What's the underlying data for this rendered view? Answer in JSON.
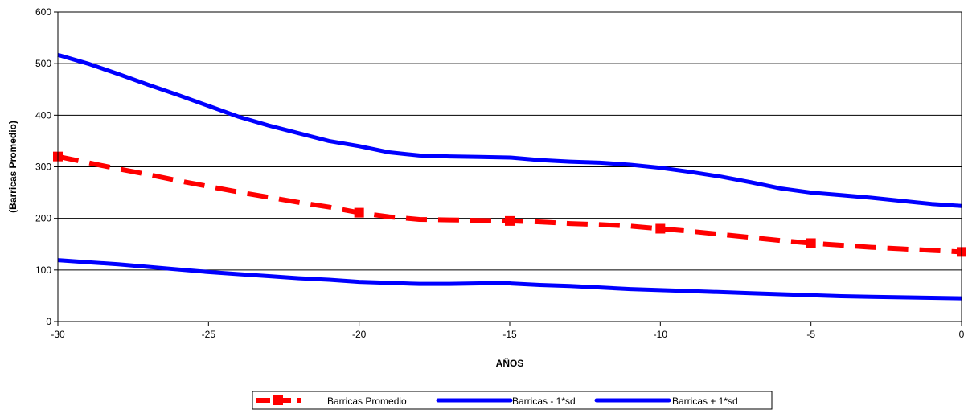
{
  "chart_data": {
    "type": "line",
    "title": "",
    "xlabel": "AÑOS",
    "ylabel": "(Barricas Promedio)",
    "xlim": [
      -30,
      0
    ],
    "ylim": [
      0,
      600
    ],
    "xticks": [
      -30,
      -25,
      -20,
      -15,
      -10,
      -5,
      0
    ],
    "yticks": [
      0,
      100,
      200,
      300,
      400,
      500,
      600
    ],
    "grid": "horizontal",
    "legend_position": "bottom",
    "series": [
      {
        "name": "Barricas Promedio",
        "color": "#ff0000",
        "style": "dashed",
        "marker": "square",
        "x": [
          -30,
          -29,
          -28,
          -27,
          -26,
          -25,
          -24,
          -23,
          -22,
          -21,
          -20,
          -19,
          -18,
          -17,
          -16,
          -15,
          -14,
          -13,
          -12,
          -11,
          -10,
          -9,
          -8,
          -7,
          -6,
          -5,
          -4,
          -3,
          -2,
          -1,
          0
        ],
        "values": [
          320,
          308,
          296,
          285,
          273,
          262,
          251,
          241,
          231,
          222,
          211,
          203,
          198,
          197,
          196,
          195,
          193,
          190,
          188,
          185,
          180,
          175,
          169,
          163,
          157,
          152,
          148,
          144,
          141,
          138,
          135
        ]
      },
      {
        "name": "Barricas - 1*sd",
        "color": "#0000ff",
        "style": "solid",
        "marker": "none",
        "x": [
          -30,
          -29,
          -28,
          -27,
          -26,
          -25,
          -24,
          -23,
          -22,
          -21,
          -20,
          -19,
          -18,
          -17,
          -16,
          -15,
          -14,
          -13,
          -12,
          -11,
          -10,
          -9,
          -8,
          -7,
          -6,
          -5,
          -4,
          -3,
          -2,
          -1,
          0
        ],
        "values": [
          119,
          115,
          111,
          106,
          101,
          96,
          92,
          88,
          84,
          81,
          77,
          75,
          73,
          73,
          74,
          74,
          71,
          69,
          66,
          63,
          61,
          59,
          57,
          55,
          53,
          51,
          49,
          48,
          47,
          46,
          45
        ]
      },
      {
        "name": "Barricas + 1*sd",
        "color": "#0000ff",
        "style": "solid",
        "marker": "none",
        "x": [
          -30,
          -29,
          -28,
          -27,
          -26,
          -25,
          -24,
          -23,
          -22,
          -21,
          -20,
          -19,
          -18,
          -17,
          -16,
          -15,
          -14,
          -13,
          -12,
          -11,
          -10,
          -9,
          -8,
          -7,
          -6,
          -5,
          -4,
          -3,
          -2,
          -1,
          0
        ],
        "values": [
          517,
          500,
          480,
          459,
          439,
          418,
          397,
          380,
          365,
          350,
          340,
          328,
          322,
          320,
          319,
          318,
          313,
          310,
          308,
          304,
          298,
          290,
          281,
          270,
          258,
          250,
          245,
          240,
          234,
          228,
          224
        ]
      }
    ]
  }
}
